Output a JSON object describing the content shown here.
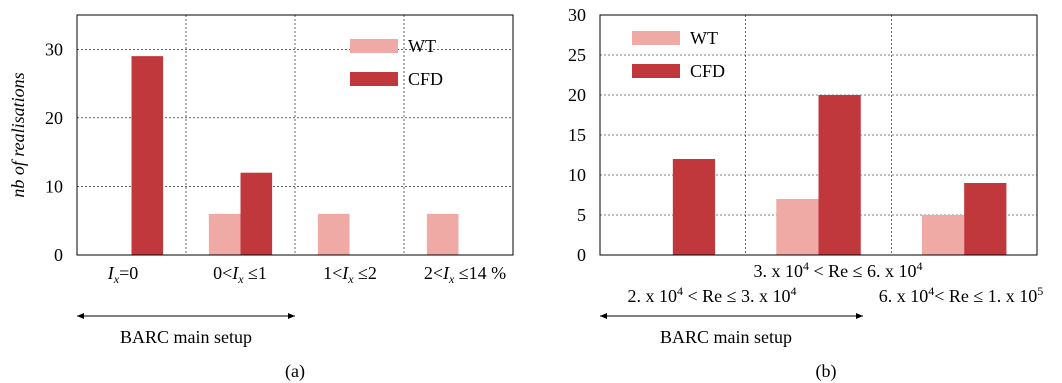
{
  "chart_data": [
    {
      "type": "bar",
      "ylabel": "nb of realisations",
      "ylim": [
        0,
        35
      ],
      "yticks": [
        0,
        10,
        20,
        30
      ],
      "categories": [
        "I_x=0",
        "0<I_x≤1",
        "1<I_x≤2",
        "2<I_x≤14 %"
      ],
      "series": [
        {
          "name": "WT",
          "color": "#efaaa6",
          "values": [
            0,
            6,
            6,
            6
          ]
        },
        {
          "name": "CFD",
          "color": "#c0383c",
          "values": [
            29,
            12,
            0,
            0
          ]
        }
      ],
      "grid": true,
      "legend": "top-right",
      "annotation": "BARC main setup",
      "caption": "(a)"
    },
    {
      "type": "bar",
      "ylabel": "",
      "ylim": [
        0,
        30
      ],
      "yticks": [
        0,
        5,
        10,
        15,
        20,
        25,
        30
      ],
      "categories": [
        "2. x 10⁴ < Re ≤ 3. x 10⁴",
        "3. x 10⁴ < Re ≤ 6. x 10⁴",
        "6. x 10⁴< Re ≤ 1. x 10⁵"
      ],
      "series": [
        {
          "name": "WT",
          "color": "#efaaa6",
          "values": [
            0,
            7,
            5
          ]
        },
        {
          "name": "CFD",
          "color": "#c0383c",
          "values": [
            12,
            20,
            9
          ]
        }
      ],
      "grid": true,
      "legend": "top-left",
      "annotation": "BARC main setup",
      "caption": "(b)"
    }
  ]
}
